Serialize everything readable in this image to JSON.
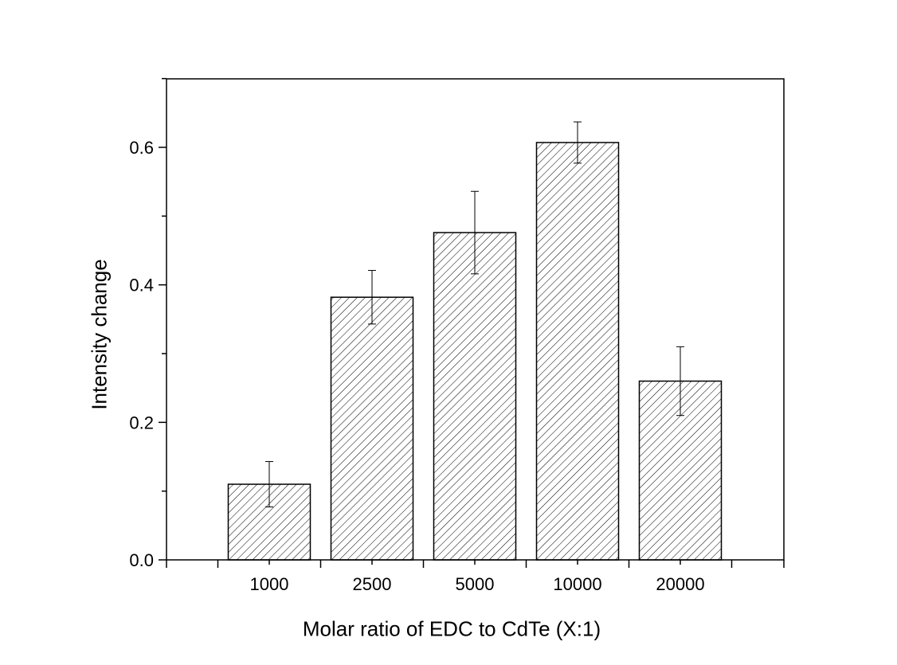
{
  "chart_data": {
    "type": "bar",
    "categories": [
      "1000",
      "2500",
      "5000",
      "10000",
      "20000"
    ],
    "values": [
      0.11,
      0.382,
      0.476,
      0.607,
      0.26
    ],
    "errors": [
      0.033,
      0.039,
      0.06,
      0.03,
      0.05
    ],
    "xlabel": "Molar ratio of EDC to CdTe (X:1)",
    "ylabel": "Intensity change",
    "ylim": [
      0,
      0.7
    ],
    "yticks": [
      "0.0",
      "0.2",
      "0.4",
      "0.6"
    ],
    "bar_pattern": "diagonal-hatch",
    "colors": {
      "bar_fill": "#ffffff",
      "stroke": "#000000"
    },
    "grid": false
  }
}
